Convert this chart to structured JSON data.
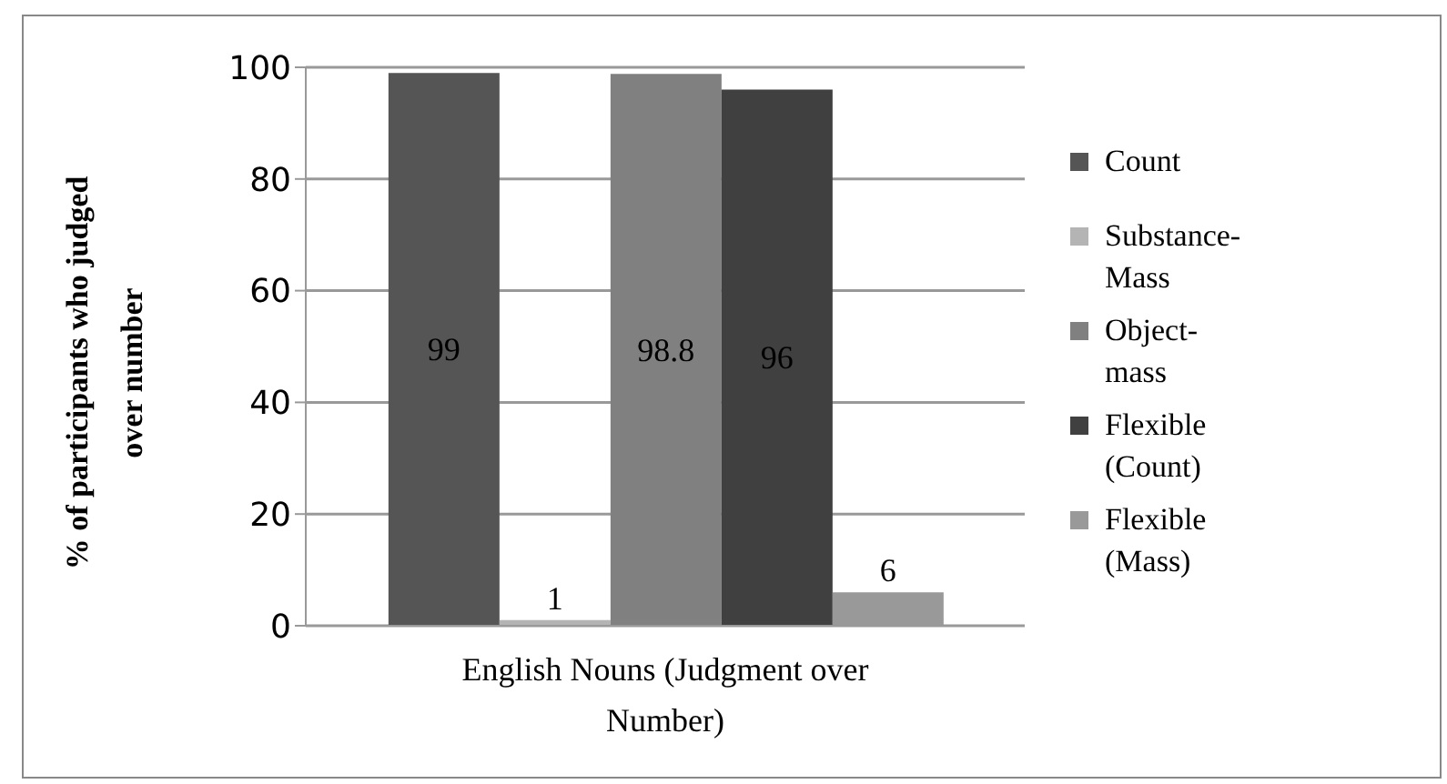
{
  "chart_data": {
    "type": "bar",
    "ylabel": "% of participants who judged over number",
    "categories": [
      "English Nouns (Judgment over Number)"
    ],
    "series": [
      {
        "name": "Count",
        "color": "#555555",
        "values": [
          99
        ]
      },
      {
        "name": "Substance-Mass",
        "color": "#b4b4b4",
        "values": [
          1
        ]
      },
      {
        "name": "Object-mass",
        "color": "#808080",
        "values": [
          98.8
        ]
      },
      {
        "name": "Flexible (Count)",
        "color": "#404040",
        "values": [
          96
        ]
      },
      {
        "name": "Flexible (Mass)",
        "color": "#999999",
        "values": [
          6
        ]
      }
    ],
    "ylim": [
      0,
      100
    ],
    "yticks": [
      0,
      20,
      40,
      60,
      80,
      100
    ],
    "grid": "y",
    "legend": "right",
    "data_labels": true
  }
}
